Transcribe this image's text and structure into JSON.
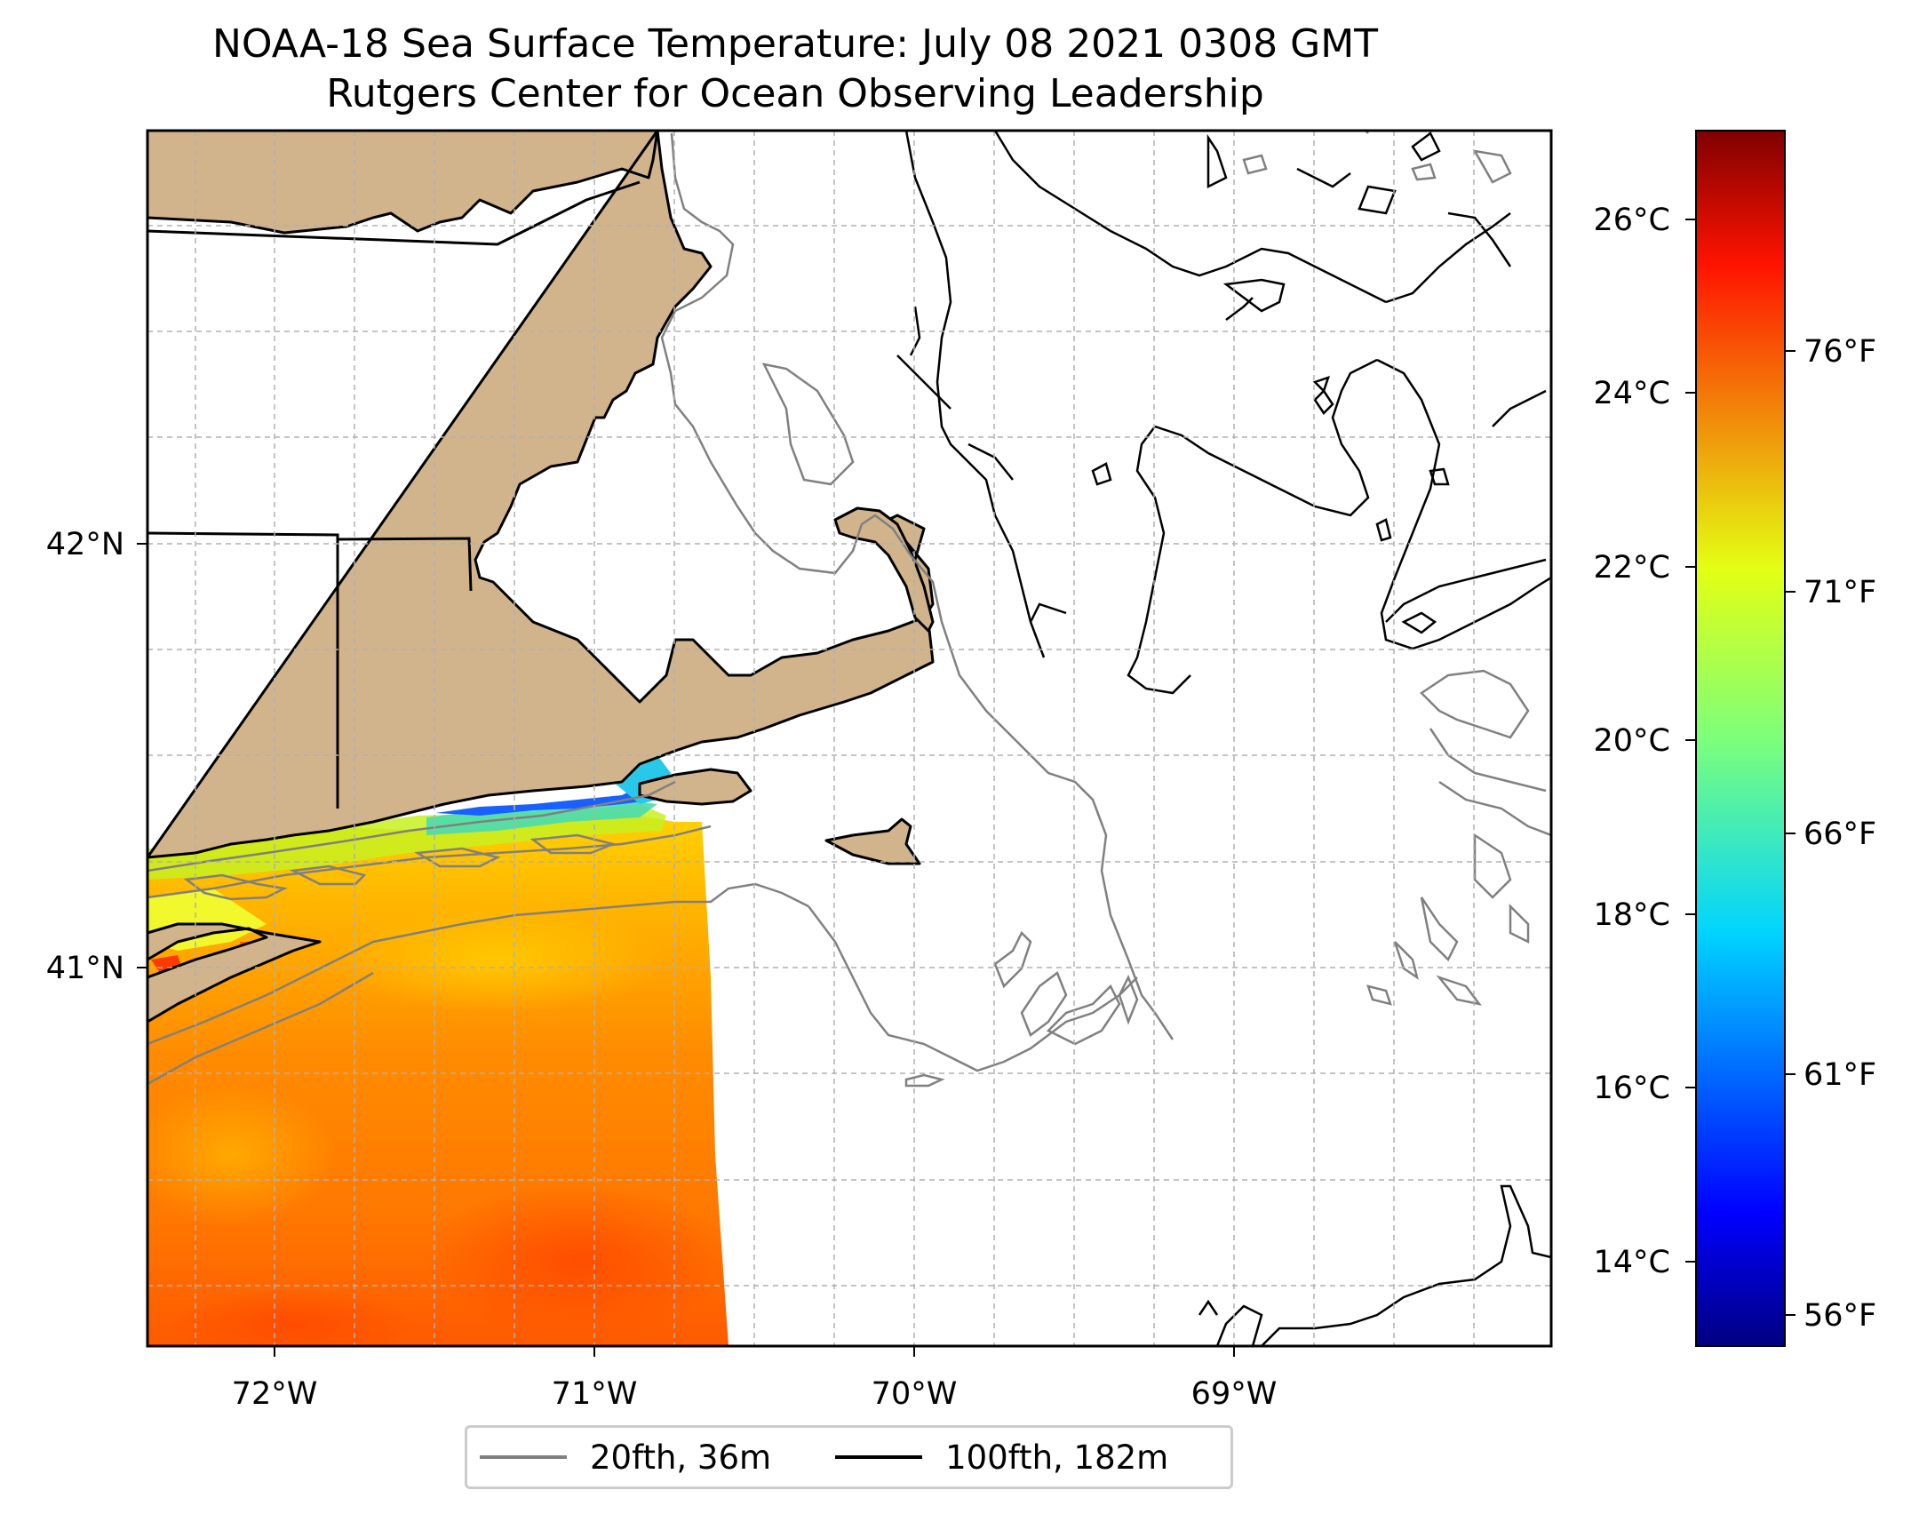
{
  "title": {
    "line1": "NOAA-18 Sea Surface Temperature: July 08 2021 0308 GMT",
    "line2": "Rutgers Center for Ocean Observing Leadership"
  },
  "map": {
    "x_tick_labels": [
      "72°W",
      "71°W",
      "70°W",
      "69°W"
    ],
    "y_tick_labels": [
      "42°N",
      "41°N"
    ],
    "colors": {
      "land": "#d2b48c",
      "land_edge": "#000000",
      "grid": "#b0b0b0",
      "isobath_20": "#808080",
      "isobath_100": "#000000"
    }
  },
  "colorbar": {
    "colormap": "jet",
    "celsius_labels": [
      "26°C",
      "24°C",
      "22°C",
      "20°C",
      "18°C",
      "16°C",
      "14°C"
    ],
    "fahrenheit_labels": [
      "76°F",
      "71°F",
      "66°F",
      "61°F",
      "56°F"
    ],
    "range_celsius": [
      13.0,
      27.0
    ]
  },
  "legend": {
    "entries": [
      {
        "label": "20fth, 36m",
        "color": "#808080"
      },
      {
        "label": "100fth, 182m",
        "color": "#000000"
      }
    ]
  }
}
